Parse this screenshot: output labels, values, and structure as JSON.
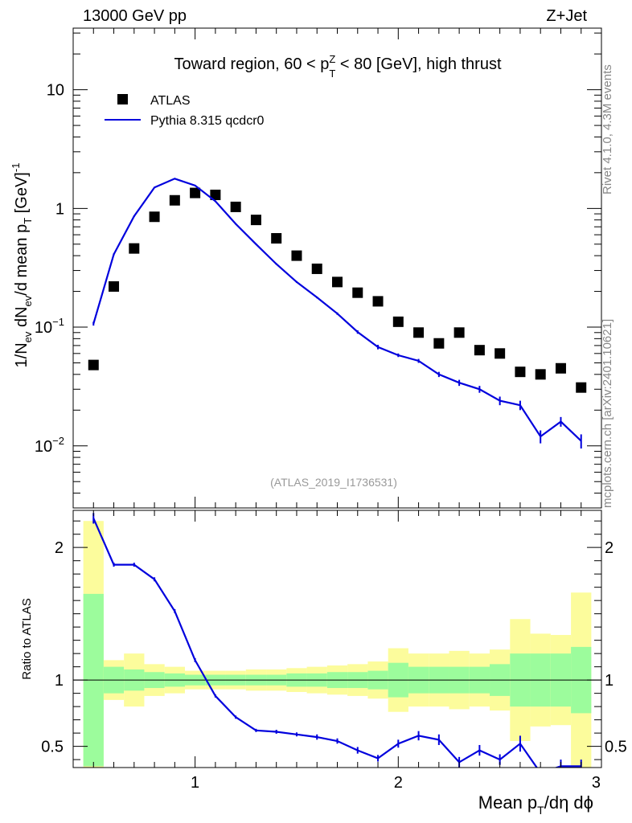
{
  "header": {
    "energy_label": "13000 GeV pp",
    "process_label": "Z+Jet"
  },
  "side_labels": {
    "rivet": "Rivet 4.1.0,  4.3M events",
    "mcplots": "mcplots.cern.ch [arXiv:2401.10621]"
  },
  "colors": {
    "mc_line": "#0000dd",
    "band_inner": "#9cfc9c",
    "band_outer": "#fcfc9c",
    "data_marker": "#000000",
    "watermark": "#999999"
  },
  "chart_data": [
    {
      "type": "scatter",
      "title_parts": {
        "prefix": "Toward region, 60 < p",
        "sup": "Z",
        "sub": "T",
        "suffix": " < 80 [GeV], high thrust"
      },
      "ylabel": "1/N_ev dN_ev/d mean p_T [GeV]^-1",
      "ylabel_parts": {
        "a": "1/N",
        "a_sub": "ev",
        "b": " dN",
        "b_sub": "ev",
        "c": "/d mean p",
        "c_sub": "T",
        "d": " [GeV]",
        "d_sup": "-1"
      },
      "yscale": "log",
      "ylim": [
        0.003,
        33
      ],
      "xlim": [
        0.4,
        3.0
      ],
      "ytick_labels": [
        {
          "value": 10,
          "label": "10"
        },
        {
          "value": 1,
          "label": "1"
        },
        {
          "value": 0.1,
          "base": "10",
          "exp": "−1"
        },
        {
          "value": 0.01,
          "base": "10",
          "exp": "−2"
        }
      ],
      "watermark": "(ATLAS_2019_I1736531)",
      "legend": {
        "position": "top-left",
        "entries": [
          {
            "name": "ATLAS",
            "marker": "square"
          },
          {
            "name": "Pythia 8.315 qcdcr0",
            "marker": "line"
          }
        ]
      },
      "series": [
        {
          "name": "ATLAS",
          "x": [
            0.5,
            0.6,
            0.7,
            0.8,
            0.9,
            1.0,
            1.1,
            1.2,
            1.3,
            1.4,
            1.5,
            1.6,
            1.7,
            1.8,
            1.9,
            2.0,
            2.1,
            2.2,
            2.3,
            2.4,
            2.5,
            2.6,
            2.7,
            2.8,
            2.9
          ],
          "y": [
            0.048,
            0.22,
            0.46,
            0.85,
            1.17,
            1.35,
            1.3,
            1.03,
            0.8,
            0.56,
            0.4,
            0.31,
            0.24,
            0.195,
            0.165,
            0.111,
            0.09,
            0.073,
            0.09,
            0.064,
            0.06,
            0.042,
            0.04,
            0.045,
            0.031
          ]
        },
        {
          "name": "Pythia 8.315 qcdcr0",
          "x": [
            0.5,
            0.6,
            0.7,
            0.8,
            0.9,
            1.0,
            1.1,
            1.2,
            1.3,
            1.4,
            1.5,
            1.6,
            1.7,
            1.8,
            1.9,
            2.0,
            2.1,
            2.2,
            2.3,
            2.4,
            2.5,
            2.6,
            2.7,
            2.8,
            2.9
          ],
          "y": [
            0.107,
            0.41,
            0.86,
            1.5,
            1.78,
            1.56,
            1.15,
            0.74,
            0.5,
            0.34,
            0.24,
            0.178,
            0.13,
            0.091,
            0.068,
            0.058,
            0.052,
            0.04,
            0.034,
            0.03,
            0.024,
            0.022,
            0.012,
            0.016,
            0.011
          ],
          "yerr": [
            0.004,
            0.008,
            0.01,
            0.015,
            0.015,
            0.015,
            0.012,
            0.008,
            0.006,
            0.005,
            0.004,
            0.003,
            0.003,
            0.003,
            0.003,
            0.002,
            0.002,
            0.002,
            0.002,
            0.002,
            0.002,
            0.002,
            0.0015,
            0.0015,
            0.0015
          ]
        }
      ]
    },
    {
      "type": "line",
      "ylabel": "Ratio to ATLAS",
      "xlabel_parts": {
        "a": "Mean p",
        "a_sub": "T",
        "b": "/dη dϕ"
      },
      "ylim": [
        0.34,
        2.28
      ],
      "xlim": [
        0.4,
        3.0
      ],
      "reference_line": 1,
      "ytick_labels": [
        {
          "value": 0.5,
          "label": "0.5"
        },
        {
          "value": 1,
          "label": "1"
        },
        {
          "value": 2,
          "label": "2"
        }
      ],
      "xtick_labels": [
        {
          "value": 1,
          "label": "1"
        },
        {
          "value": 2,
          "label": "2"
        },
        {
          "value": 3,
          "label": "3"
        }
      ],
      "bin_edges": [
        0.45,
        0.55,
        0.65,
        0.75,
        0.85,
        0.95,
        1.05,
        1.15,
        1.25,
        1.35,
        1.45,
        1.55,
        1.65,
        1.75,
        1.85,
        1.95,
        2.05,
        2.15,
        2.25,
        2.35,
        2.45,
        2.55,
        2.65,
        2.75,
        2.85,
        2.95
      ],
      "band_inner": {
        "low": [
          0.35,
          0.9,
          0.92,
          0.94,
          0.95,
          0.96,
          0.96,
          0.96,
          0.96,
          0.96,
          0.95,
          0.95,
          0.94,
          0.94,
          0.93,
          0.87,
          0.9,
          0.9,
          0.9,
          0.9,
          0.88,
          0.8,
          0.8,
          0.8,
          0.75
        ],
        "high": [
          1.65,
          1.1,
          1.08,
          1.06,
          1.05,
          1.04,
          1.04,
          1.04,
          1.04,
          1.04,
          1.05,
          1.05,
          1.06,
          1.06,
          1.07,
          1.13,
          1.1,
          1.1,
          1.1,
          1.1,
          1.12,
          1.2,
          1.2,
          1.2,
          1.25
        ]
      },
      "band_outer": {
        "low": [
          0.34,
          0.85,
          0.8,
          0.88,
          0.9,
          0.93,
          0.93,
          0.93,
          0.92,
          0.92,
          0.91,
          0.9,
          0.89,
          0.88,
          0.86,
          0.76,
          0.8,
          0.8,
          0.78,
          0.8,
          0.77,
          0.54,
          0.65,
          0.66,
          0.34
        ],
        "high": [
          2.2,
          1.15,
          1.2,
          1.12,
          1.1,
          1.07,
          1.07,
          1.07,
          1.08,
          1.08,
          1.09,
          1.1,
          1.11,
          1.12,
          1.14,
          1.24,
          1.2,
          1.2,
          1.22,
          1.2,
          1.23,
          1.46,
          1.35,
          1.34,
          1.66
        ]
      },
      "series": [
        {
          "name": "Pythia 8.315 qcdcr0",
          "x": [
            0.5,
            0.6,
            0.7,
            0.8,
            0.9,
            1.0,
            1.1,
            1.2,
            1.3,
            1.4,
            1.5,
            1.6,
            1.7,
            1.8,
            1.9,
            2.0,
            2.1,
            2.2,
            2.3,
            2.4,
            2.5,
            2.6,
            2.7,
            2.8,
            2.9
          ],
          "y": [
            2.22,
            1.87,
            1.87,
            1.76,
            1.52,
            1.15,
            0.88,
            0.72,
            0.62,
            0.61,
            0.59,
            0.57,
            0.54,
            0.47,
            0.41,
            0.52,
            0.58,
            0.55,
            0.38,
            0.47,
            0.4,
            0.52,
            0.3,
            0.35,
            0.35
          ],
          "yerr": [
            0.04,
            0.015,
            0.015,
            0.015,
            0.015,
            0.015,
            0.012,
            0.012,
            0.012,
            0.015,
            0.015,
            0.02,
            0.02,
            0.025,
            0.025,
            0.03,
            0.035,
            0.04,
            0.04,
            0.04,
            0.04,
            0.06,
            0.04,
            0.05,
            0.05
          ]
        }
      ]
    }
  ]
}
